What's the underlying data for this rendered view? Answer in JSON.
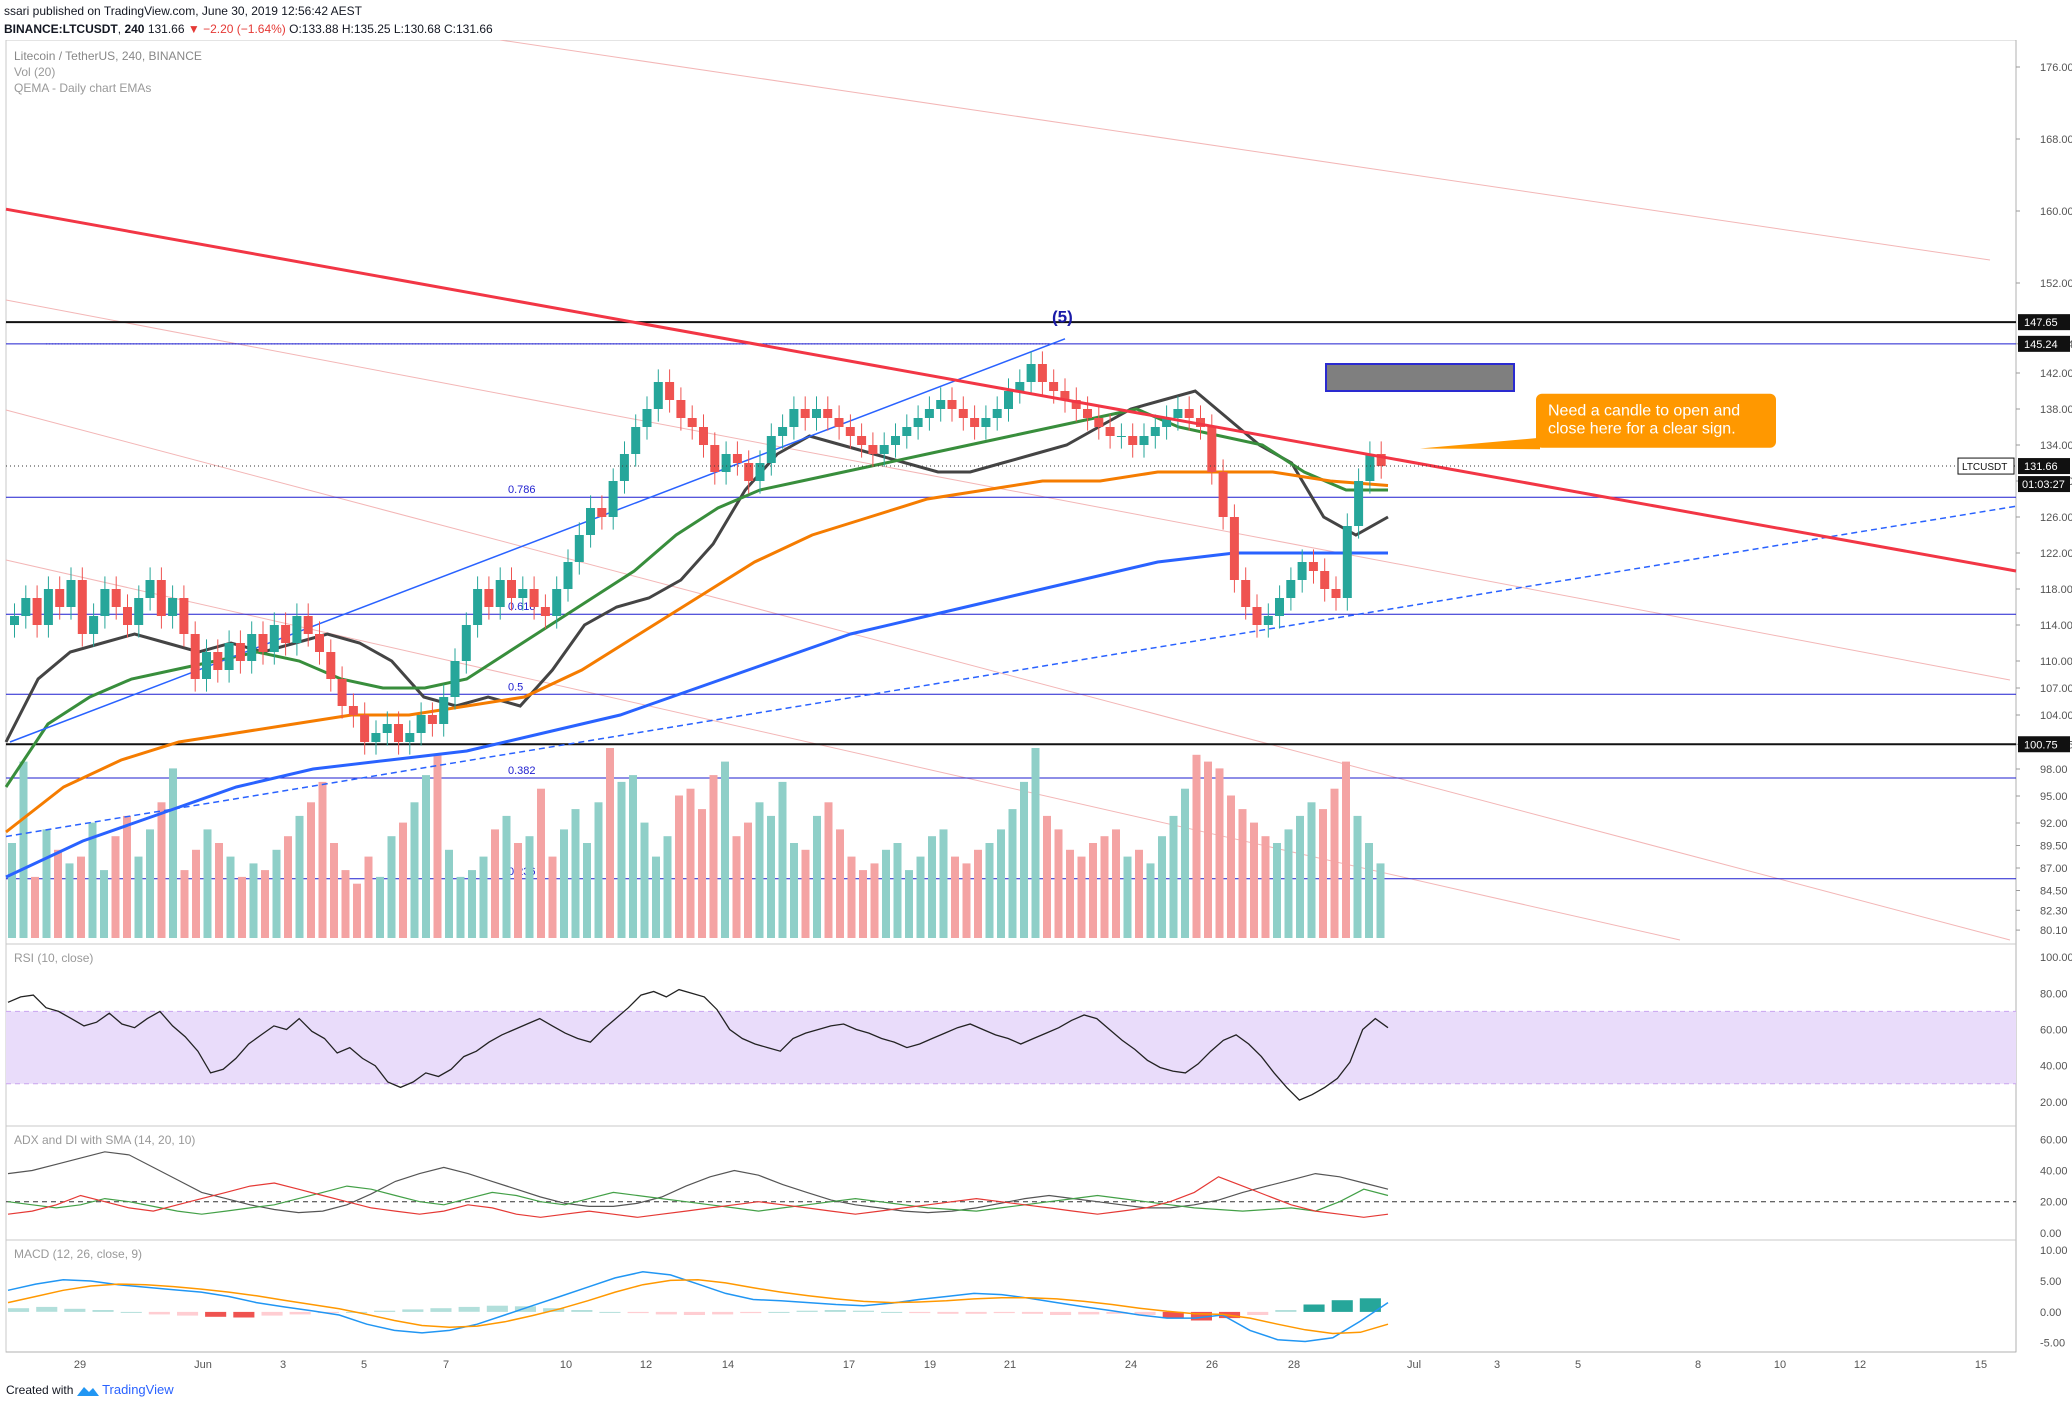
{
  "header": {
    "publisher_line": "ssari published on TradingView.com, June 30, 2019 12:56:42 AEST",
    "symbol": "BINANCE:LTCUSDT",
    "interval": "240",
    "last": "131.66",
    "change": "▼ −2.20 (−1.64%)",
    "ohlc_o": "O:133.88",
    "ohlc_h": "H:135.25",
    "ohlc_l": "L:130.68",
    "ohlc_c": "C:131.66"
  },
  "footer": {
    "created_with": "Created with",
    "brand": "TradingView"
  },
  "colors": {
    "up": "#26a69a",
    "down": "#ef5350",
    "trend_red": "#f23645",
    "ema_gray": "#444444",
    "ema_green": "#388e3c",
    "ema_orange": "#f57c00",
    "ema_blue": "#2962ff",
    "fib_blue": "#1e1ecf",
    "callout": "#ff9800",
    "rsi_band": "#e9dcfa"
  },
  "chart_data": [
    {
      "type": "line",
      "title": "Litecoin / TetherUS, 240, BINANCE",
      "indicator_labels": [
        "Vol (20)",
        "QEMA - Daily chart EMAs"
      ],
      "ylim": [
        79,
        179
      ],
      "y_ticks": [
        "176.00",
        "168.00",
        "160.00",
        "152.00",
        "145.24",
        "142.00",
        "138.00",
        "134.00",
        "130.00",
        "126.00",
        "122.00",
        "118.00",
        "114.00",
        "110.00",
        "107.00",
        "104.00",
        "100.75",
        "98.00",
        "95.00",
        "92.00",
        "89.50",
        "87.00",
        "84.50",
        "82.30",
        "80.10"
      ],
      "x_tick_labels": [
        "29",
        "Jun",
        "3",
        "5",
        "7",
        "10",
        "12",
        "14",
        "17",
        "19",
        "21",
        "24",
        "26",
        "28",
        "Jul",
        "3",
        "5",
        "8",
        "10",
        "12",
        "15"
      ],
      "price_series": {
        "name": "LTCUSDT",
        "values": [
          115,
          117,
          114,
          118,
          116,
          119,
          113,
          115,
          118,
          116,
          114,
          117,
          119,
          115,
          117,
          113,
          108,
          111,
          109,
          112,
          110,
          113,
          111,
          114,
          112,
          115,
          113,
          111,
          108,
          105,
          104,
          101,
          102,
          103,
          101,
          102,
          104,
          103,
          106,
          110,
          114,
          118,
          116,
          119,
          117,
          118,
          116,
          115,
          118,
          121,
          124,
          127,
          126,
          130,
          133,
          136,
          138,
          141,
          139,
          137,
          136,
          134,
          131,
          133,
          132,
          130,
          132,
          135,
          136,
          138,
          137,
          138,
          137,
          136,
          135,
          134,
          133,
          134,
          135,
          136,
          137,
          138,
          139,
          138,
          137,
          136,
          137,
          138,
          140,
          141,
          143,
          141,
          140,
          139,
          138,
          137,
          136,
          135,
          135,
          134,
          135,
          136,
          137,
          138,
          137,
          136,
          131,
          126,
          119,
          116,
          114,
          115,
          117,
          119,
          121,
          120,
          118,
          117,
          125,
          130,
          133,
          131.66
        ],
        "last_label": "131.66",
        "countdown": "01:03:27"
      },
      "emas": [
        {
          "name": "EMA gray",
          "values": [
            101,
            108,
            111,
            112,
            113,
            112,
            111,
            112,
            111,
            112,
            113,
            112,
            110,
            106,
            105,
            106,
            105,
            109,
            114,
            116,
            117,
            119,
            123,
            129,
            133,
            135,
            134,
            133,
            132,
            131,
            131,
            132,
            133,
            134,
            136,
            138,
            139,
            140,
            137,
            134,
            132,
            126,
            124,
            126
          ]
        },
        {
          "name": "EMA green",
          "values": [
            96,
            103,
            106,
            108,
            109,
            110,
            111,
            110,
            108,
            107,
            107,
            108,
            111,
            114,
            117,
            120,
            124,
            127,
            129,
            130,
            131,
            132,
            133,
            134,
            135,
            136,
            137,
            138,
            136,
            135,
            134,
            131,
            129,
            129
          ]
        },
        {
          "name": "EMA orange",
          "values": [
            91,
            96,
            99,
            101,
            102,
            103,
            104,
            104,
            105,
            106,
            109,
            113,
            117,
            121,
            124,
            126,
            128,
            129,
            130,
            130,
            131,
            131,
            131,
            130,
            129.5
          ]
        },
        {
          "name": "EMA blue",
          "values": [
            86,
            90,
            93,
            96,
            98,
            99,
            100,
            102,
            104,
            107,
            110,
            113,
            115,
            117,
            119,
            121,
            122,
            122,
            122
          ]
        }
      ],
      "levels": [
        {
          "label": "",
          "value": 147.65,
          "axis_label": "147.65"
        },
        {
          "label": "",
          "value": 145.24,
          "axis_label": "145.24"
        },
        {
          "label": "0.786",
          "value": 128.2
        },
        {
          "label": "0.618",
          "value": 115.2
        },
        {
          "label": "0.5",
          "value": 106.3
        },
        {
          "label": "",
          "value": 100.75,
          "axis_label": "100.75"
        },
        {
          "label": "0.382",
          "value": 97.0
        },
        {
          "label": "0.236",
          "value": 85.8
        }
      ],
      "wave_label": "(5)",
      "target_box": {
        "from": 140.0,
        "to": 143.0
      },
      "annotation": "Need a candle to open and close here for a clear sign.",
      "volume": [
        14,
        26,
        9,
        16,
        13,
        11,
        12,
        17,
        10,
        15,
        18,
        12,
        16,
        20,
        25,
        10,
        13,
        16,
        14,
        12,
        9,
        11,
        10,
        13,
        15,
        18,
        20,
        23,
        14,
        10,
        8,
        12,
        9,
        15,
        17,
        20,
        24,
        27,
        13,
        9,
        10,
        12,
        16,
        18,
        14,
        15,
        22,
        12,
        16,
        19,
        14,
        20,
        28,
        23,
        24,
        17,
        12,
        15,
        21,
        22,
        19,
        24,
        26,
        15,
        17,
        20,
        18,
        23,
        14,
        13,
        18,
        20,
        16,
        12,
        10,
        11,
        13,
        14,
        10,
        12,
        15,
        16,
        12,
        11,
        13,
        14,
        16,
        19,
        23,
        28,
        18,
        16,
        13,
        12,
        14,
        15,
        16,
        12,
        13,
        11,
        15,
        18,
        22,
        27,
        26,
        25,
        21,
        19,
        17,
        15,
        14,
        16,
        18,
        20,
        19,
        22,
        26,
        18,
        14,
        11
      ]
    },
    {
      "type": "line",
      "title": "RSI (10, close)",
      "ylim": [
        10,
        105
      ],
      "y_ticks": [
        "100.00",
        "80.00",
        "60.00",
        "40.00",
        "20.00"
      ],
      "band": [
        30,
        70
      ],
      "values": [
        75,
        78,
        79,
        72,
        70,
        66,
        62,
        64,
        69,
        63,
        61,
        66,
        70,
        62,
        56,
        48,
        36,
        38,
        44,
        52,
        57,
        62,
        60,
        66,
        59,
        55,
        47,
        50,
        44,
        40,
        31,
        28,
        31,
        36,
        34,
        38,
        45,
        48,
        53,
        57,
        60,
        63,
        66,
        62,
        58,
        55,
        53,
        60,
        66,
        72,
        79,
        81,
        78,
        82,
        80,
        78,
        71,
        60,
        55,
        52,
        50,
        48,
        55,
        58,
        60,
        62,
        63,
        60,
        58,
        55,
        53,
        50,
        52,
        55,
        58,
        61,
        63,
        60,
        57,
        55,
        52,
        55,
        58,
        61,
        65,
        68,
        66,
        60,
        54,
        49,
        43,
        39,
        37,
        36,
        41,
        48,
        54,
        57,
        52,
        45,
        36,
        28,
        21,
        24,
        28,
        33,
        42,
        60,
        66,
        61
      ]
    },
    {
      "type": "line",
      "title": "ADX and DI with SMA (14, 20, 10)",
      "ylim": [
        -2,
        66
      ],
      "y_ticks": [
        "60.00",
        "40.00",
        "20.00",
        "0.00"
      ],
      "dashed_level": 20,
      "series": [
        {
          "name": "ADX",
          "values": [
            38,
            40,
            44,
            48,
            52,
            50,
            42,
            34,
            26,
            22,
            18,
            15,
            13,
            14,
            18,
            25,
            33,
            38,
            42,
            38,
            33,
            28,
            23,
            19,
            17,
            17,
            19,
            23,
            30,
            36,
            40,
            37,
            31,
            26,
            21,
            18,
            16,
            14,
            13,
            14,
            16,
            19,
            22,
            24,
            22,
            20,
            18,
            16,
            16,
            18,
            21,
            26,
            30,
            34,
            38,
            36,
            32,
            28
          ]
        },
        {
          "name": "+DI",
          "values": [
            20,
            18,
            16,
            18,
            22,
            20,
            17,
            14,
            12,
            14,
            16,
            18,
            22,
            26,
            30,
            28,
            24,
            20,
            18,
            22,
            26,
            24,
            20,
            18,
            22,
            26,
            24,
            22,
            20,
            18,
            16,
            14,
            16,
            18,
            20,
            22,
            20,
            18,
            16,
            15,
            14,
            16,
            18,
            20,
            22,
            24,
            22,
            20,
            18,
            16,
            15,
            14,
            15,
            16,
            14,
            20,
            28,
            24
          ]
        },
        {
          "name": "-DI",
          "values": [
            12,
            14,
            18,
            24,
            20,
            16,
            14,
            18,
            22,
            26,
            30,
            32,
            28,
            24,
            20,
            16,
            14,
            12,
            14,
            18,
            16,
            12,
            10,
            12,
            14,
            12,
            10,
            12,
            14,
            16,
            18,
            20,
            18,
            16,
            14,
            12,
            14,
            16,
            18,
            20,
            22,
            20,
            18,
            16,
            14,
            12,
            14,
            16,
            20,
            26,
            36,
            30,
            24,
            18,
            14,
            12,
            10,
            12
          ]
        }
      ]
    },
    {
      "type": "line",
      "title": "MACD (12, 26, close, 9)",
      "ylim": [
        -6.5,
        11
      ],
      "y_ticks": [
        "10.00",
        "5.00",
        "0.00",
        "-5.00"
      ],
      "series": [
        {
          "name": "MACD",
          "values": [
            3.5,
            4.5,
            5.2,
            5.0,
            4.4,
            4.0,
            3.6,
            3.2,
            2.5,
            1.5,
            0.8,
            0.2,
            -0.5,
            -2.0,
            -3.0,
            -3.4,
            -3.0,
            -2.0,
            -0.5,
            1.0,
            2.5,
            4.0,
            5.5,
            6.5,
            6.0,
            4.5,
            3.0,
            2.0,
            1.8,
            1.5,
            1.2,
            1.0,
            1.4,
            2.0,
            2.5,
            3.0,
            2.8,
            2.2,
            1.5,
            0.8,
            0.2,
            -0.5,
            -1.0,
            -1.0,
            -0.5,
            -3.0,
            -4.5,
            -4.8,
            -4.2,
            -1.5,
            1.5
          ]
        },
        {
          "name": "Signal",
          "values": [
            1.5,
            2.5,
            3.5,
            4.2,
            4.5,
            4.4,
            4.1,
            3.7,
            3.2,
            2.6,
            1.9,
            1.2,
            0.5,
            -0.4,
            -1.4,
            -2.2,
            -2.5,
            -2.3,
            -1.6,
            -0.6,
            0.5,
            1.8,
            3.2,
            4.4,
            5.1,
            5.2,
            4.7,
            3.9,
            3.2,
            2.6,
            2.1,
            1.7,
            1.5,
            1.6,
            1.8,
            2.1,
            2.3,
            2.3,
            2.1,
            1.7,
            1.2,
            0.6,
            0.1,
            -0.3,
            -0.4,
            -1.0,
            -2.0,
            -2.9,
            -3.5,
            -3.3,
            -2.0
          ]
        },
        {
          "name": "Histogram",
          "values": [
            0.6,
            0.8,
            0.5,
            0.3,
            0.0,
            -0.4,
            -0.6,
            -0.8,
            -0.9,
            -0.6,
            -0.4,
            -0.2,
            0.0,
            0.2,
            0.4,
            0.6,
            0.8,
            1.0,
            0.9,
            0.6,
            0.3,
            0.0,
            -0.2,
            -0.4,
            -0.5,
            -0.4,
            -0.2,
            0.0,
            0.2,
            0.3,
            0.2,
            0.0,
            -0.2,
            -0.3,
            -0.3,
            -0.2,
            -0.3,
            -0.5,
            -0.4,
            -0.3,
            -0.5,
            -1.0,
            -1.4,
            -1.0,
            -0.5,
            0.3,
            1.2,
            1.9,
            2.2
          ]
        }
      ]
    }
  ]
}
